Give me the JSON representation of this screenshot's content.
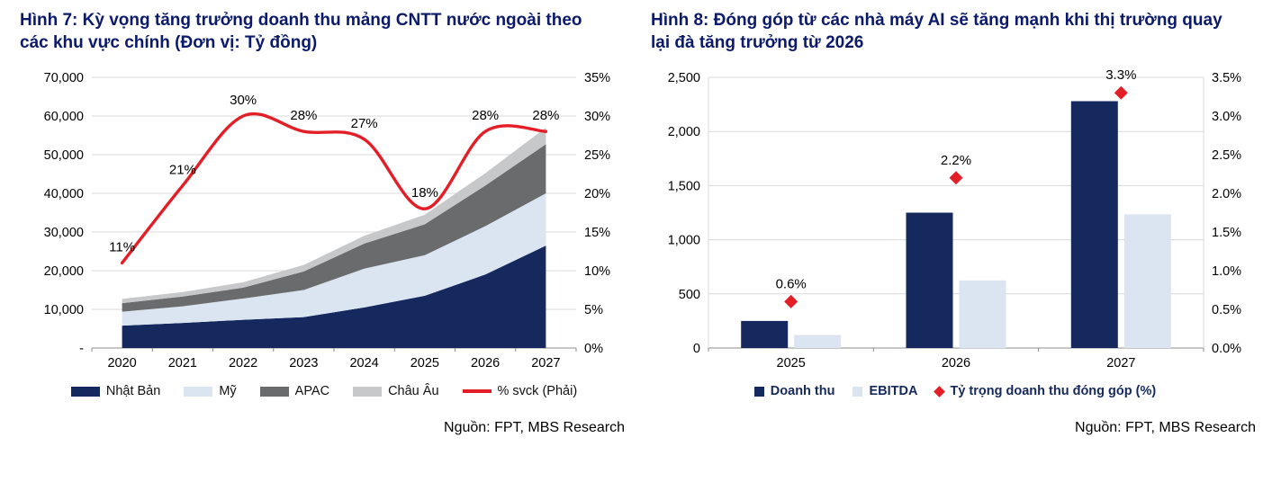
{
  "colors": {
    "title": "#0b1a6b",
    "navy": "#15295e",
    "light_blue": "#dbe5f2",
    "dark_gray": "#6a6b6d",
    "light_gray": "#c7c8ca",
    "red": "#e31e26",
    "grid": "#d9d9d9",
    "axis": "#8c8c8c",
    "text": "#000000"
  },
  "figure7": {
    "title_lines": [
      "Hình 7: Kỳ vọng tăng trưởng doanh thu mảng CNTT nước ngoài theo",
      "các khu vực chính (Đơn vị: Tỷ đồng)"
    ],
    "source": "Nguồn: FPT, MBS Research"
  },
  "figure8": {
    "title_lines": [
      "Hình 8: Đóng góp từ các nhà máy AI sẽ tăng mạnh khi thị trường quay",
      "lại đà tăng trưởng từ 2026"
    ],
    "source": "Nguồn: FPT, MBS Research"
  },
  "chart_data": [
    {
      "type": "area",
      "title": "Hình 7: Kỳ vọng tăng trưởng doanh thu mảng CNTT nước ngoài theo các khu vực chính (Đơn vị: Tỷ đồng)",
      "categories": [
        "2020",
        "2021",
        "2022",
        "2023",
        "2024",
        "2025",
        "2026",
        "2027"
      ],
      "series": [
        {
          "id": "nhat-ban",
          "name": "Nhật Bản",
          "type": "area",
          "color": "navy",
          "values": [
            5800,
            6500,
            7300,
            8000,
            10500,
            13500,
            19000,
            26500
          ]
        },
        {
          "id": "my",
          "name": "Mỹ",
          "type": "area",
          "color": "light_blue",
          "values": [
            3600,
            4300,
            5500,
            7000,
            10000,
            10500,
            12500,
            13500
          ]
        },
        {
          "id": "apac",
          "name": "APAC",
          "type": "area",
          "color": "dark_gray",
          "values": [
            2200,
            2500,
            2800,
            4800,
            6500,
            8000,
            10500,
            12700
          ]
        },
        {
          "id": "chau-au",
          "name": "Châu Âu",
          "type": "area",
          "color": "light_gray",
          "values": [
            1100,
            1200,
            1400,
            1700,
            2000,
            2500,
            3200,
            4300
          ]
        },
        {
          "id": "svck",
          "name": "% svck (Phải)",
          "type": "line",
          "axis": "right",
          "color": "red",
          "values": [
            11,
            21,
            30,
            28,
            27,
            18,
            28,
            28
          ],
          "point_labels": [
            "11%",
            "21%",
            "30%",
            "28%",
            "27%",
            "18%",
            "28%",
            "28%"
          ]
        }
      ],
      "y_left": {
        "min": 0,
        "max": 70000,
        "step": 10000,
        "tick_labels": [
          "-",
          "10,000",
          "20,000",
          "30,000",
          "40,000",
          "50,000",
          "60,000",
          "70,000"
        ]
      },
      "y_right": {
        "min": 0,
        "max": 35,
        "step": 5,
        "tick_labels": [
          "0%",
          "5%",
          "10%",
          "15%",
          "20%",
          "25%",
          "30%",
          "35%"
        ]
      },
      "grid": true,
      "legend_position": "bottom"
    },
    {
      "type": "bar",
      "title": "Hình 8: Đóng góp từ các nhà máy AI sẽ tăng mạnh khi thị trường quay lại đà tăng trưởng từ 2026",
      "categories": [
        "2025",
        "2026",
        "2027"
      ],
      "series": [
        {
          "id": "doanh-thu",
          "name": "Doanh thu",
          "type": "bar",
          "color": "navy",
          "values": [
            250,
            1250,
            2280
          ]
        },
        {
          "id": "ebitda",
          "name": "EBITDA",
          "type": "bar",
          "color": "light_blue",
          "values": [
            120,
            625,
            1235
          ]
        },
        {
          "id": "ty-trong",
          "name": "Tỷ trọng doanh thu đóng góp (%)",
          "type": "scatter",
          "marker": "diamond",
          "axis": "right",
          "color": "red",
          "values": [
            0.6,
            2.2,
            3.3
          ],
          "point_labels": [
            "0.6%",
            "2.2%",
            "3.3%"
          ]
        }
      ],
      "y_left": {
        "min": 0,
        "max": 2500,
        "step": 500,
        "tick_labels": [
          "0",
          "500",
          "1,000",
          "1,500",
          "2,000",
          "2,500"
        ]
      },
      "y_right": {
        "min": 0,
        "max": 3.5,
        "step": 0.5,
        "tick_labels": [
          "0.0%",
          "0.5%",
          "1.0%",
          "1.5%",
          "2.0%",
          "2.5%",
          "3.0%",
          "3.5%"
        ]
      },
      "grid": true,
      "legend_position": "bottom"
    }
  ]
}
